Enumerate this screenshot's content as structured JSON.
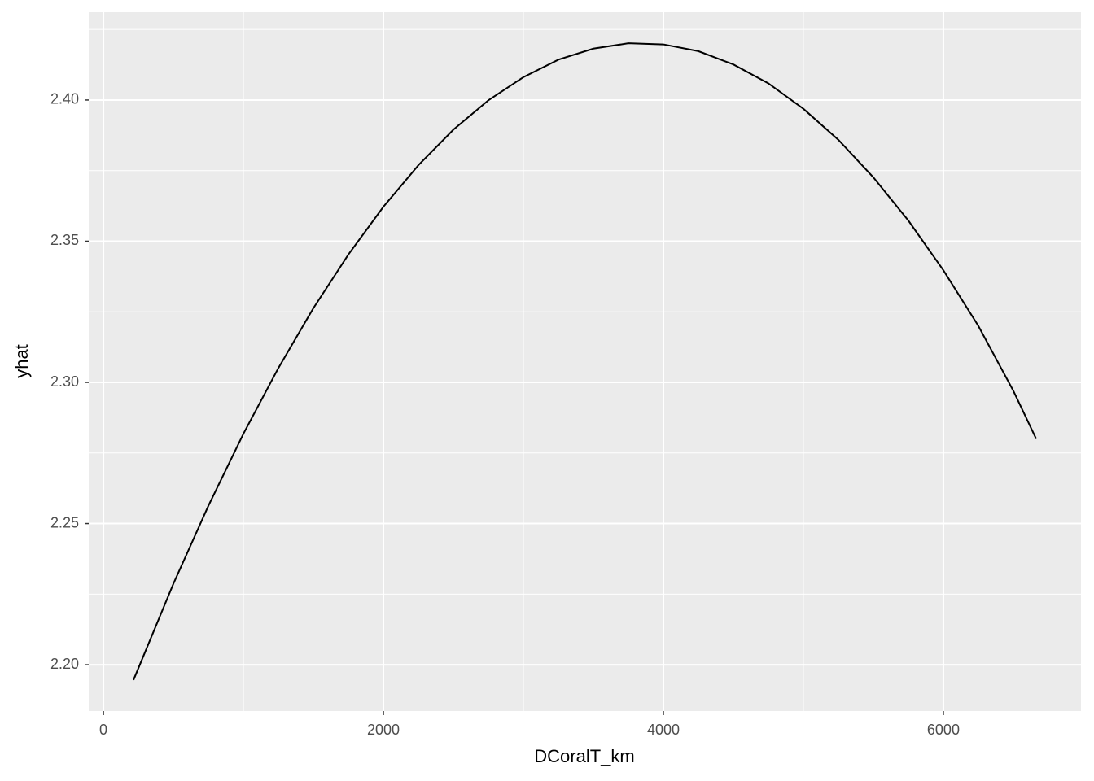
{
  "chart_data": {
    "type": "line",
    "x_label": "DCoralT_km",
    "y_label": "yhat",
    "x": [
      215,
      500,
      750,
      1000,
      1250,
      1500,
      1750,
      2000,
      2250,
      2500,
      2750,
      3000,
      3250,
      3500,
      3750,
      4000,
      4250,
      4500,
      4750,
      5000,
      5250,
      5500,
      5750,
      6000,
      6250,
      6500,
      6663
    ],
    "values": [
      2.1946,
      2.2287,
      2.2563,
      2.2818,
      2.3051,
      2.3263,
      2.3453,
      2.3622,
      2.3769,
      2.3895,
      2.3999,
      2.4081,
      2.4143,
      2.4182,
      2.4201,
      2.4197,
      2.4173,
      2.4126,
      2.4059,
      2.3969,
      2.3859,
      2.3726,
      2.3573,
      2.3397,
      2.32,
      2.297,
      2.28
    ],
    "color": "#000000",
    "xlim": [
      -105,
      6983
    ],
    "ylim": [
      2.1836,
      2.4311
    ],
    "xticks": [
      0,
      2000,
      4000,
      6000
    ],
    "yticks": [
      {
        "value": 2.2,
        "label": "2.20"
      },
      2.25,
      {
        "value": 2.3,
        "label": "2.30"
      },
      2.35,
      {
        "value": 2.4,
        "label": "2.40"
      }
    ],
    "xminor": [
      1000,
      3000,
      5000
    ],
    "yminor": [
      2.225,
      2.275,
      2.325,
      2.375,
      2.425
    ],
    "grid": true
  }
}
